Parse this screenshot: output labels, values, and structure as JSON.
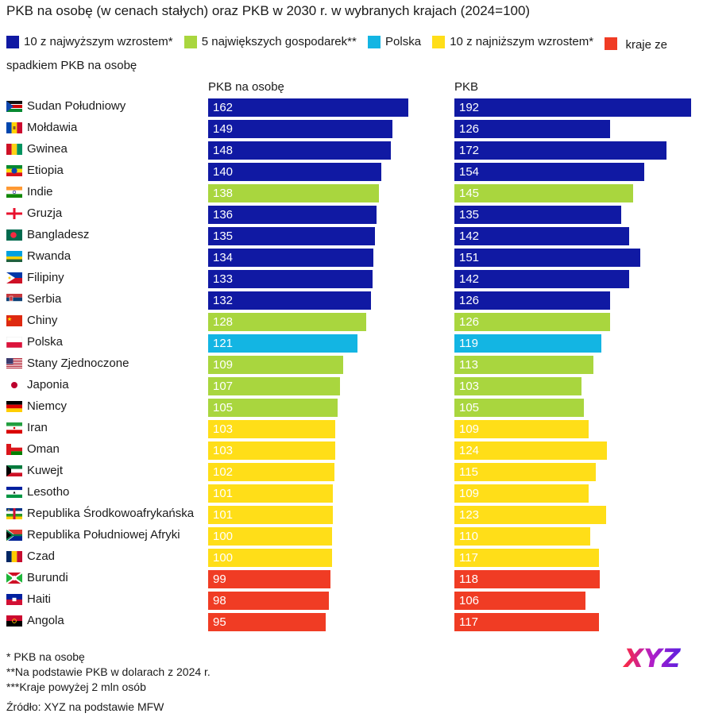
{
  "title": "PKB na osobę (w cenach stałych) oraz PKB w 2030 r. w wybranych krajach (2024=100)",
  "colors": {
    "top10": "#1019a3",
    "big5": "#a9d63e",
    "poland": "#13b5e3",
    "bottom10": "#ffde18",
    "decline": "#f03c24"
  },
  "legend": [
    {
      "key": "top10",
      "label": "10 z najwyższym wzrostem*"
    },
    {
      "key": "big5",
      "label": "5 największych gospodarek**"
    },
    {
      "key": "poland",
      "label": "Polska"
    },
    {
      "key": "bottom10",
      "label": "10 z najniższym wzrostem*"
    },
    {
      "key": "decline",
      "label": "kraje ze spadkiem PKB na osobę"
    }
  ],
  "chart_data": [
    {
      "type": "bar",
      "title": "PKB na osobę",
      "orientation": "horizontal",
      "categories": [
        "Sudan Południowy",
        "Mołdawia",
        "Gwinea",
        "Etiopia",
        "Indie",
        "Gruzja",
        "Bangladesz",
        "Rwanda",
        "Filipiny",
        "Serbia",
        "Chiny",
        "Polska",
        "Stany Zjednoczone",
        "Japonia",
        "Niemcy",
        "Iran",
        "Oman",
        "Kuwejt",
        "Lesotho",
        "Republika Środkowoafrykańska",
        "Republika Południowej Afryki",
        "Czad",
        "Burundi",
        "Haiti",
        "Angola"
      ],
      "values": [
        162,
        149,
        148,
        140,
        138,
        136,
        135,
        134,
        133,
        132,
        128,
        121,
        109,
        107,
        105,
        103,
        103,
        102,
        101,
        101,
        100,
        100,
        99,
        98,
        95
      ],
      "groups": [
        "top10",
        "top10",
        "top10",
        "top10",
        "big5",
        "top10",
        "top10",
        "top10",
        "top10",
        "top10",
        "big5",
        "poland",
        "big5",
        "big5",
        "big5",
        "bottom10",
        "bottom10",
        "bottom10",
        "bottom10",
        "bottom10",
        "bottom10",
        "bottom10",
        "decline",
        "decline",
        "decline"
      ],
      "xlim": [
        0,
        192
      ]
    },
    {
      "type": "bar",
      "title": "PKB",
      "orientation": "horizontal",
      "categories": [
        "Sudan Południowy",
        "Mołdawia",
        "Gwinea",
        "Etiopia",
        "Indie",
        "Gruzja",
        "Bangladesz",
        "Rwanda",
        "Filipiny",
        "Serbia",
        "Chiny",
        "Polska",
        "Stany Zjednoczone",
        "Japonia",
        "Niemcy",
        "Iran",
        "Oman",
        "Kuwejt",
        "Lesotho",
        "Republika Środkowoafrykańska",
        "Republika Południowej Afryki",
        "Czad",
        "Burundi",
        "Haiti",
        "Angola"
      ],
      "values": [
        192,
        126,
        172,
        154,
        145,
        135,
        142,
        151,
        142,
        126,
        126,
        119,
        113,
        103,
        105,
        109,
        124,
        115,
        109,
        123,
        110,
        117,
        118,
        106,
        117
      ],
      "groups": [
        "top10",
        "top10",
        "top10",
        "top10",
        "big5",
        "top10",
        "top10",
        "top10",
        "top10",
        "top10",
        "big5",
        "poland",
        "big5",
        "big5",
        "big5",
        "bottom10",
        "bottom10",
        "bottom10",
        "bottom10",
        "bottom10",
        "bottom10",
        "bottom10",
        "decline",
        "decline",
        "decline"
      ],
      "xlim": [
        0,
        192
      ]
    }
  ],
  "footnotes": [
    "* PKB na osobę",
    "**Na podstawie PKB w dolarach z 2024 r.",
    "***Kraje powyżej 2 mln osób"
  ],
  "source": "Źródło: XYZ na podstawie MFW",
  "logo_text": "XYZ",
  "flag_icons": [
    "south-sudan-flag-icon",
    "moldova-flag-icon",
    "guinea-flag-icon",
    "ethiopia-flag-icon",
    "india-flag-icon",
    "georgia-flag-icon",
    "bangladesh-flag-icon",
    "rwanda-flag-icon",
    "philippines-flag-icon",
    "serbia-flag-icon",
    "china-flag-icon",
    "poland-flag-icon",
    "usa-flag-icon",
    "japan-flag-icon",
    "germany-flag-icon",
    "iran-flag-icon",
    "oman-flag-icon",
    "kuwait-flag-icon",
    "lesotho-flag-icon",
    "car-flag-icon",
    "south-africa-flag-icon",
    "chad-flag-icon",
    "burundi-flag-icon",
    "haiti-flag-icon",
    "angola-flag-icon"
  ]
}
